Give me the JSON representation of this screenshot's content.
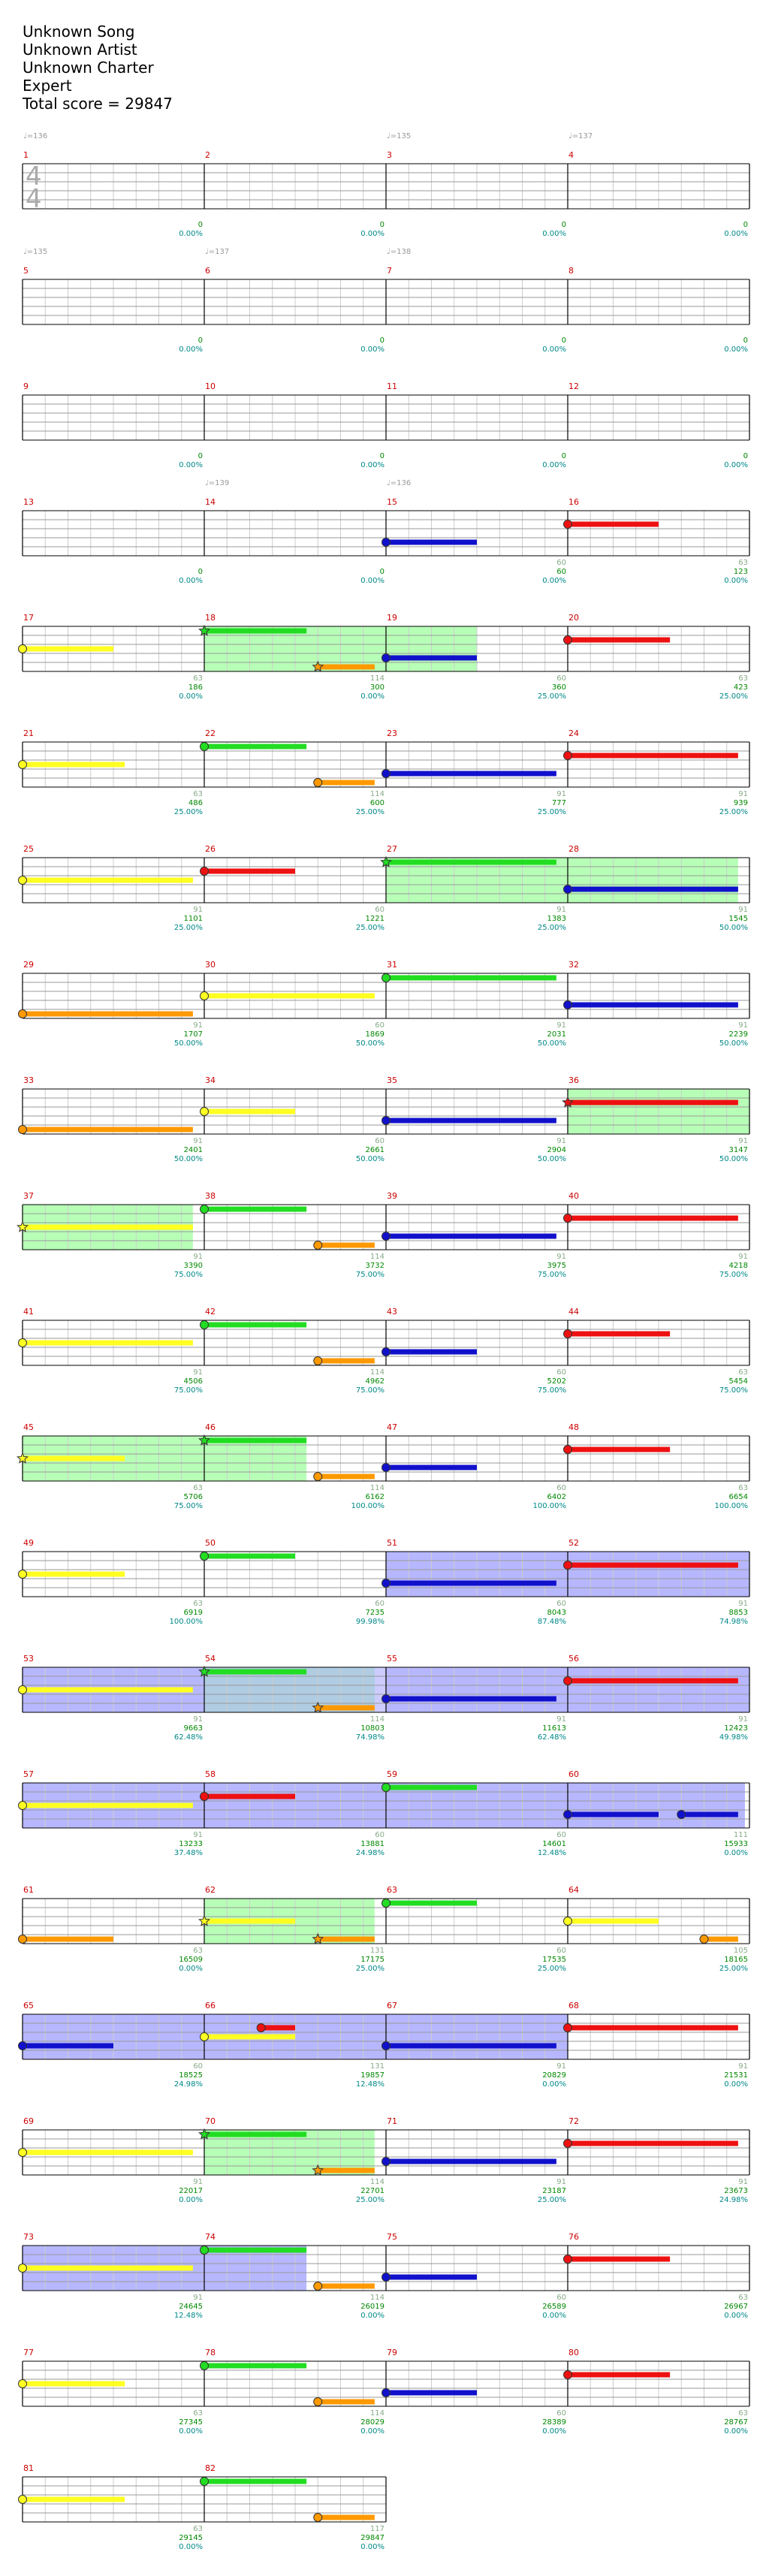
{
  "song": {
    "title": "Unknown Song",
    "artist": "Unknown Artist",
    "charter": "Unknown Charter",
    "difficulty": "Expert",
    "total_score": "Total score = 29847"
  },
  "time_signature": {
    "numerator": "4",
    "denominator": "4"
  },
  "colors": {
    "green": "#22dd22",
    "red": "#ee1111",
    "yellow": "#ffff22",
    "blue": "#1111cc",
    "orange": "#ff9900",
    "measure_number": "#cc0000",
    "tempo": "#999999",
    "score": "#008800",
    "percent": "#008888",
    "sp_phrase": "#aaffaa",
    "sp_active": "#aaaaff"
  },
  "tempos": [
    {
      "measure": 1,
      "label": "♩=136"
    },
    {
      "measure": 3,
      "label": "♩=135"
    },
    {
      "measure": 4,
      "label": "♩=137"
    },
    {
      "measure": 5,
      "label": "♩=135"
    },
    {
      "measure": 6,
      "label": "♩=137"
    },
    {
      "measure": 7,
      "label": "♩=138"
    },
    {
      "measure": 14,
      "label": "♩=139"
    },
    {
      "measure": 15,
      "label": "♩=136"
    }
  ],
  "measures": [
    {
      "n": "1",
      "score": "0",
      "pct": "0.00%",
      "notes": []
    },
    {
      "n": "2",
      "score": "0",
      "pct": "0.00%",
      "notes": []
    },
    {
      "n": "3",
      "score": "0",
      "pct": "0.00%",
      "notes": []
    },
    {
      "n": "4",
      "score": "0",
      "pct": "0.00%",
      "notes": []
    },
    {
      "n": "5",
      "score": "0",
      "pct": "0.00%",
      "notes": []
    },
    {
      "n": "6",
      "score": "0",
      "pct": "0.00%",
      "notes": []
    },
    {
      "n": "7",
      "score": "0",
      "pct": "0.00%",
      "notes": []
    },
    {
      "n": "8",
      "score": "0",
      "pct": "0.00%",
      "notes": []
    },
    {
      "n": "9",
      "score": "0",
      "pct": "0.00%",
      "notes": []
    },
    {
      "n": "10",
      "score": "0",
      "pct": "0.00%",
      "notes": []
    },
    {
      "n": "11",
      "score": "0",
      "pct": "0.00%",
      "notes": []
    },
    {
      "n": "12",
      "score": "0",
      "pct": "0.00%",
      "notes": []
    },
    {
      "n": "13",
      "score": "0",
      "pct": "0.00%",
      "notes": []
    },
    {
      "n": "14",
      "score": "0",
      "pct": "0.00%",
      "notes": []
    },
    {
      "n": "15",
      "gain": "60",
      "score": "60",
      "pct": "0.00%",
      "notes": [
        {
          "c": "blue",
          "b": 0,
          "e": 2
        }
      ]
    },
    {
      "n": "16",
      "gain": "63",
      "score": "123",
      "pct": "0.00%",
      "notes": [
        {
          "c": "red",
          "b": 0,
          "e": 2
        }
      ]
    },
    {
      "n": "17",
      "gain": "63",
      "score": "186",
      "pct": "0.00%",
      "notes": [
        {
          "c": "yellow",
          "b": 0,
          "e": 2
        }
      ]
    },
    {
      "n": "18",
      "gain": "114",
      "score": "300",
      "pct": "0.00%",
      "sp": "phrase",
      "notes": [
        {
          "c": "green",
          "b": 0,
          "e": 2.25,
          "star": true
        },
        {
          "c": "orange",
          "b": 2.5,
          "e": 3.75,
          "star": true
        }
      ]
    },
    {
      "n": "19",
      "gain": "60",
      "score": "360",
      "pct": "25.00%",
      "sp": "phrase",
      "spEnd": 2,
      "notes": [
        {
          "c": "blue",
          "b": 0,
          "e": 2
        }
      ]
    },
    {
      "n": "20",
      "gain": "63",
      "score": "423",
      "pct": "25.00%",
      "notes": [
        {
          "c": "red",
          "b": 0,
          "e": 2.25
        }
      ]
    },
    {
      "n": "21",
      "gain": "63",
      "score": "486",
      "pct": "25.00%",
      "notes": [
        {
          "c": "yellow",
          "b": 0,
          "e": 2.25
        }
      ]
    },
    {
      "n": "22",
      "gain": "114",
      "score": "600",
      "pct": "25.00%",
      "notes": [
        {
          "c": "green",
          "b": 0,
          "e": 2.25
        },
        {
          "c": "orange",
          "b": 2.5,
          "e": 3.75
        }
      ]
    },
    {
      "n": "23",
      "gain": "91",
      "score": "777",
      "pct": "25.00%",
      "notes": [
        {
          "c": "blue",
          "b": 0,
          "e": 3.75
        }
      ]
    },
    {
      "n": "24",
      "gain": "91",
      "score": "939",
      "pct": "25.00%",
      "notes": [
        {
          "c": "red",
          "b": 0,
          "e": 3.75
        }
      ]
    },
    {
      "n": "25",
      "gain": "91",
      "score": "1101",
      "pct": "25.00%",
      "notes": [
        {
          "c": "yellow",
          "b": 0,
          "e": 3.75
        }
      ]
    },
    {
      "n": "26",
      "gain": "60",
      "score": "1221",
      "pct": "25.00%",
      "notes": [
        {
          "c": "red",
          "b": 0,
          "e": 2
        }
      ]
    },
    {
      "n": "27",
      "gain": "91",
      "score": "1383",
      "pct": "25.00%",
      "sp": "phrase",
      "notes": [
        {
          "c": "green",
          "b": 0,
          "e": 3.75,
          "star": true
        }
      ]
    },
    {
      "n": "28",
      "gain": "91",
      "score": "1545",
      "pct": "50.00%",
      "sp": "phrase",
      "spEnd": 3.75,
      "notes": [
        {
          "c": "blue",
          "b": 0,
          "e": 3.75
        }
      ]
    },
    {
      "n": "29",
      "gain": "91",
      "score": "1707",
      "pct": "50.00%",
      "notes": [
        {
          "c": "orange",
          "b": 0,
          "e": 3.75
        }
      ]
    },
    {
      "n": "30",
      "gain": "60",
      "score": "1869",
      "pct": "50.00%",
      "notes": [
        {
          "c": "yellow",
          "b": 0,
          "e": 3.75
        }
      ]
    },
    {
      "n": "31",
      "gain": "91",
      "score": "2031",
      "pct": "50.00%",
      "notes": [
        {
          "c": "green",
          "b": 0,
          "e": 3.75
        }
      ]
    },
    {
      "n": "32",
      "gain": "91",
      "score": "2239",
      "pct": "50.00%",
      "notes": [
        {
          "c": "blue",
          "b": 0,
          "e": 3.75
        }
      ]
    },
    {
      "n": "33",
      "gain": "91",
      "score": "2401",
      "pct": "50.00%",
      "notes": [
        {
          "c": "orange",
          "b": 0,
          "e": 3.75
        }
      ]
    },
    {
      "n": "34",
      "gain": "60",
      "score": "2661",
      "pct": "50.00%",
      "notes": [
        {
          "c": "yellow",
          "b": 0,
          "e": 2
        }
      ]
    },
    {
      "n": "35",
      "gain": "91",
      "score": "2904",
      "pct": "50.00%",
      "notes": [
        {
          "c": "blue",
          "b": 0,
          "e": 3.75
        }
      ]
    },
    {
      "n": "36",
      "gain": "91",
      "score": "3147",
      "pct": "50.00%",
      "sp": "phrase",
      "notes": [
        {
          "c": "red",
          "b": 0,
          "e": 3.75,
          "star": true
        }
      ]
    },
    {
      "n": "37",
      "gain": "91",
      "score": "3390",
      "pct": "75.00%",
      "sp": "phrase",
      "spEnd": 3.75,
      "notes": [
        {
          "c": "yellow",
          "b": 0,
          "e": 3.75,
          "star": true
        }
      ]
    },
    {
      "n": "38",
      "gain": "114",
      "score": "3732",
      "pct": "75.00%",
      "notes": [
        {
          "c": "green",
          "b": 0,
          "e": 2.25
        },
        {
          "c": "orange",
          "b": 2.5,
          "e": 3.75
        }
      ]
    },
    {
      "n": "39",
      "gain": "91",
      "score": "3975",
      "pct": "75.00%",
      "notes": [
        {
          "c": "blue",
          "b": 0,
          "e": 3.75
        }
      ]
    },
    {
      "n": "40",
      "gain": "91",
      "score": "4218",
      "pct": "75.00%",
      "notes": [
        {
          "c": "red",
          "b": 0,
          "e": 3.75
        }
      ]
    },
    {
      "n": "41",
      "gain": "91",
      "score": "4506",
      "pct": "75.00%",
      "notes": [
        {
          "c": "yellow",
          "b": 0,
          "e": 3.75
        }
      ]
    },
    {
      "n": "42",
      "gain": "114",
      "score": "4962",
      "pct": "75.00%",
      "notes": [
        {
          "c": "green",
          "b": 0,
          "e": 2.25
        },
        {
          "c": "orange",
          "b": 2.5,
          "e": 3.75
        }
      ]
    },
    {
      "n": "43",
      "gain": "60",
      "score": "5202",
      "pct": "75.00%",
      "notes": [
        {
          "c": "blue",
          "b": 0,
          "e": 2
        }
      ]
    },
    {
      "n": "44",
      "gain": "63",
      "score": "5454",
      "pct": "75.00%",
      "notes": [
        {
          "c": "red",
          "b": 0,
          "e": 2.25
        }
      ]
    },
    {
      "n": "45",
      "gain": "63",
      "score": "5706",
      "pct": "75.00%",
      "sp": "phrase",
      "notes": [
        {
          "c": "yellow",
          "b": 0,
          "e": 2.25,
          "star": true
        }
      ]
    },
    {
      "n": "46",
      "gain": "114",
      "score": "6162",
      "pct": "100.00%",
      "sp": "phrase",
      "spEnd": 2.25,
      "notes": [
        {
          "c": "green",
          "b": 0,
          "e": 2.25,
          "star": true
        },
        {
          "c": "orange",
          "b": 2.5,
          "e": 3.75
        }
      ]
    },
    {
      "n": "47",
      "gain": "60",
      "score": "6402",
      "pct": "100.00%",
      "notes": [
        {
          "c": "blue",
          "b": 0,
          "e": 2
        }
      ]
    },
    {
      "n": "48",
      "gain": "63",
      "score": "6654",
      "pct": "100.00%",
      "notes": [
        {
          "c": "red",
          "b": 0,
          "e": 2.25
        }
      ]
    },
    {
      "n": "49",
      "gain": "63",
      "score": "6919",
      "pct": "100.00%",
      "notes": [
        {
          "c": "yellow",
          "b": 0,
          "e": 2.25
        }
      ]
    },
    {
      "n": "50",
      "gain": "60",
      "score": "7235",
      "pct": "99.98%",
      "notes": [
        {
          "c": "green",
          "b": 0,
          "e": 2
        }
      ]
    },
    {
      "n": "51",
      "gain": "60",
      "score": "8043",
      "pct": "87.48%",
      "sp": "active",
      "notes": [
        {
          "c": "blue",
          "b": 0,
          "e": 3.75
        }
      ]
    },
    {
      "n": "52",
      "gain": "91",
      "score": "8853",
      "pct": "74.98%",
      "sp": "active",
      "notes": [
        {
          "c": "red",
          "b": 0,
          "e": 3.75
        }
      ]
    },
    {
      "n": "53",
      "gain": "91",
      "score": "9663",
      "pct": "62.48%",
      "sp": "active",
      "notes": [
        {
          "c": "yellow",
          "b": 0,
          "e": 3.75
        }
      ]
    },
    {
      "n": "54",
      "gain": "114",
      "score": "10803",
      "pct": "74.98%",
      "sp": "both",
      "spEnd": 3.75,
      "notes": [
        {
          "c": "green",
          "b": 0,
          "e": 2.25,
          "star": true
        },
        {
          "c": "orange",
          "b": 2.5,
          "e": 3.75,
          "star": true
        }
      ]
    },
    {
      "n": "55",
      "gain": "91",
      "score": "11613",
      "pct": "62.48%",
      "sp": "active",
      "notes": [
        {
          "c": "blue",
          "b": 0,
          "e": 3.75
        }
      ]
    },
    {
      "n": "56",
      "gain": "91",
      "score": "12423",
      "pct": "49.98%",
      "sp": "active",
      "notes": [
        {
          "c": "red",
          "b": 0,
          "e": 3.75
        }
      ]
    },
    {
      "n": "57",
      "gain": "91",
      "score": "13233",
      "pct": "37.48%",
      "sp": "active",
      "notes": [
        {
          "c": "yellow",
          "b": 0,
          "e": 3.75
        }
      ]
    },
    {
      "n": "58",
      "gain": "60",
      "score": "13881",
      "pct": "24.98%",
      "sp": "active",
      "notes": [
        {
          "c": "red",
          "b": 0,
          "e": 2
        }
      ]
    },
    {
      "n": "59",
      "gain": "60",
      "score": "14601",
      "pct": "12.48%",
      "sp": "active",
      "notes": [
        {
          "c": "green",
          "b": 0,
          "e": 2
        }
      ]
    },
    {
      "n": "60",
      "gain": "111",
      "score": "15933",
      "pct": "0.00%",
      "sp": "active",
      "spEnd": 3.9,
      "notes": [
        {
          "c": "blue",
          "b": 0,
          "e": 2
        },
        {
          "c": "blue",
          "b": 2.5,
          "e": 3.75
        }
      ]
    },
    {
      "n": "61",
      "gain": "63",
      "score": "16509",
      "pct": "0.00%",
      "notes": [
        {
          "c": "orange",
          "b": 0,
          "e": 2
        }
      ]
    },
    {
      "n": "62",
      "gain": "131",
      "score": "17175",
      "pct": "25.00%",
      "sp": "phrase",
      "spEnd": 3.75,
      "notes": [
        {
          "c": "yellow",
          "b": 0,
          "e": 2,
          "star": true
        },
        {
          "c": "orange",
          "b": 2.5,
          "e": 3.75,
          "star": true
        }
      ]
    },
    {
      "n": "63",
      "gain": "60",
      "score": "17535",
      "pct": "25.00%",
      "notes": [
        {
          "c": "green",
          "b": 0,
          "e": 2
        }
      ]
    },
    {
      "n": "64",
      "gain": "105",
      "score": "18165",
      "pct": "25.00%",
      "notes": [
        {
          "c": "yellow",
          "b": 0,
          "e": 2
        },
        {
          "c": "orange",
          "b": 3,
          "e": 3.75
        }
      ]
    },
    {
      "n": "65",
      "gain": "60",
      "score": "18525",
      "pct": "24.98%",
      "sp": "active",
      "notes": [
        {
          "c": "blue",
          "b": 0,
          "e": 2
        }
      ]
    },
    {
      "n": "66",
      "gain": "131",
      "score": "19857",
      "pct": "12.48%",
      "sp": "active",
      "notes": [
        {
          "c": "yellow",
          "b": 0,
          "e": 2
        },
        {
          "c": "red",
          "b": 1.25,
          "e": 2
        }
      ]
    },
    {
      "n": "67",
      "gain": "91",
      "score": "20829",
      "pct": "0.00%",
      "sp": "active",
      "spEnd": 4,
      "notes": [
        {
          "c": "blue",
          "b": 0,
          "e": 3.75
        }
      ]
    },
    {
      "n": "68",
      "gain": "91",
      "score": "21531",
      "pct": "0.00%",
      "notes": [
        {
          "c": "red",
          "b": 0,
          "e": 3.75
        }
      ]
    },
    {
      "n": "69",
      "gain": "91",
      "score": "22017",
      "pct": "0.00%",
      "notes": [
        {
          "c": "yellow",
          "b": 0,
          "e": 3.75
        }
      ]
    },
    {
      "n": "70",
      "gain": "114",
      "score": "22701",
      "pct": "25.00%",
      "sp": "phrase",
      "spEnd": 3.75,
      "notes": [
        {
          "c": "green",
          "b": 0,
          "e": 2.25,
          "star": true
        },
        {
          "c": "orange",
          "b": 2.5,
          "e": 3.75,
          "star": true
        }
      ]
    },
    {
      "n": "71",
      "gain": "91",
      "score": "23187",
      "pct": "25.00%",
      "notes": [
        {
          "c": "blue",
          "b": 0,
          "e": 3.75
        }
      ]
    },
    {
      "n": "72",
      "gain": "91",
      "score": "23673",
      "pct": "24.98%",
      "notes": [
        {
          "c": "red",
          "b": 0,
          "e": 3.75
        }
      ]
    },
    {
      "n": "73",
      "gain": "91",
      "score": "24645",
      "pct": "12.48%",
      "sp": "active",
      "notes": [
        {
          "c": "yellow",
          "b": 0,
          "e": 3.75
        }
      ]
    },
    {
      "n": "74",
      "gain": "114",
      "score": "26019",
      "pct": "0.00%",
      "sp": "active",
      "spEnd": 2.25,
      "notes": [
        {
          "c": "green",
          "b": 0,
          "e": 2.25
        },
        {
          "c": "orange",
          "b": 2.5,
          "e": 3.75
        }
      ]
    },
    {
      "n": "75",
      "gain": "60",
      "score": "26589",
      "pct": "0.00%",
      "notes": [
        {
          "c": "blue",
          "b": 0,
          "e": 2
        }
      ]
    },
    {
      "n": "76",
      "gain": "63",
      "score": "26967",
      "pct": "0.00%",
      "notes": [
        {
          "c": "red",
          "b": 0,
          "e": 2.25
        }
      ]
    },
    {
      "n": "77",
      "gain": "63",
      "score": "27345",
      "pct": "0.00%",
      "notes": [
        {
          "c": "yellow",
          "b": 0,
          "e": 2.25
        }
      ]
    },
    {
      "n": "78",
      "gain": "114",
      "score": "28029",
      "pct": "0.00%",
      "notes": [
        {
          "c": "green",
          "b": 0,
          "e": 2.25
        },
        {
          "c": "orange",
          "b": 2.5,
          "e": 3.75
        }
      ]
    },
    {
      "n": "79",
      "gain": "60",
      "score": "28389",
      "pct": "0.00%",
      "notes": [
        {
          "c": "blue",
          "b": 0,
          "e": 2
        }
      ]
    },
    {
      "n": "80",
      "gain": "63",
      "score": "28767",
      "pct": "0.00%",
      "notes": [
        {
          "c": "red",
          "b": 0,
          "e": 2.25
        }
      ]
    },
    {
      "n": "81",
      "gain": "63",
      "score": "29145",
      "pct": "0.00%",
      "notes": [
        {
          "c": "yellow",
          "b": 0,
          "e": 2.25
        }
      ]
    },
    {
      "n": "82",
      "gain": "117",
      "score": "29847",
      "pct": "0.00%",
      "notes": [
        {
          "c": "green",
          "b": 0,
          "e": 2.25
        },
        {
          "c": "orange",
          "b": 2.5,
          "e": 3.75
        }
      ]
    }
  ]
}
